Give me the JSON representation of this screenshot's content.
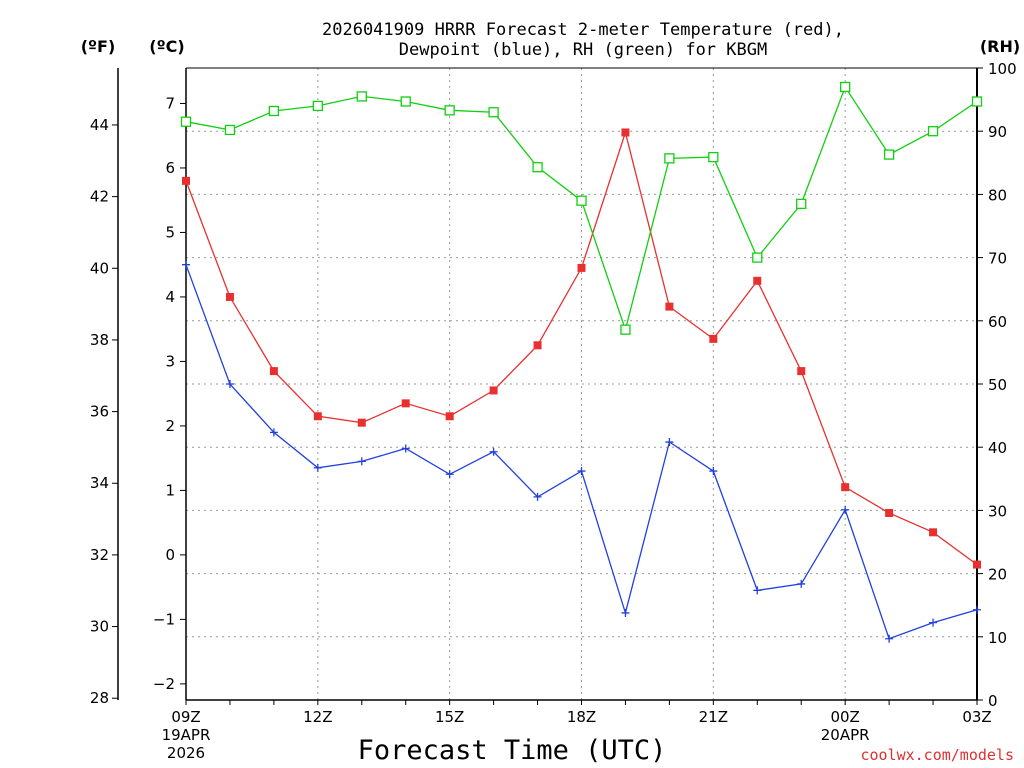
{
  "title": {
    "line1": "2026041909 HRRR Forecast 2-meter Temperature (red),",
    "line2": "Dewpoint (blue), RH (green) for KBGM"
  },
  "units": {
    "f": "(ºF)",
    "c": "(ºC)",
    "rh": "(RH)"
  },
  "credit": "coolwx.com/models",
  "colors": {
    "temperature": "#e83030",
    "dewpoint": "#2040e0",
    "rh": "#10d010",
    "grid": "#999999"
  },
  "chart_data": {
    "type": "line",
    "title": "2026041909 HRRR Forecast 2-meter Temperature (red), Dewpoint (blue), RH (green) for KBGM",
    "xlabel": "Forecast Time (UTC)",
    "x_hours": [
      9,
      10,
      11,
      12,
      13,
      14,
      15,
      16,
      17,
      18,
      19,
      20,
      21,
      22,
      23,
      24,
      25,
      26,
      27
    ],
    "xlim": [
      9,
      27
    ],
    "x_ticks": [
      {
        "hour": 9,
        "label": "09Z",
        "date": "19APR",
        "year": "2026"
      },
      {
        "hour": 12,
        "label": "12Z"
      },
      {
        "hour": 15,
        "label": "15Z"
      },
      {
        "hour": 18,
        "label": "18Z"
      },
      {
        "hour": 21,
        "label": "21Z"
      },
      {
        "hour": 24,
        "label": "00Z",
        "date": "20APR"
      },
      {
        "hour": 27,
        "label": "03Z"
      }
    ],
    "y_celsius": {
      "ylim": [
        -2.25,
        7.55
      ],
      "ticks": [
        -2,
        -1,
        0,
        1,
        2,
        3,
        4,
        5,
        6,
        7
      ]
    },
    "y_fahrenheit": {
      "ticks": [
        28,
        30,
        32,
        34,
        36,
        38,
        40,
        42,
        44
      ]
    },
    "y_rh": {
      "ylim": [
        0,
        100
      ],
      "ticks": [
        0,
        10,
        20,
        30,
        40,
        50,
        60,
        70,
        80,
        90,
        100
      ]
    },
    "series": [
      {
        "name": "Temperature",
        "axis": "celsius",
        "color": "#e83030",
        "marker": "filled-square",
        "values": [
          5.8,
          4.0,
          2.85,
          2.15,
          2.05,
          2.35,
          2.15,
          2.55,
          3.25,
          4.45,
          6.55,
          3.85,
          3.35,
          4.25,
          2.85,
          1.05,
          0.65,
          0.35,
          -0.15
        ]
      },
      {
        "name": "Dewpoint",
        "axis": "celsius",
        "color": "#2040e0",
        "marker": "plus",
        "values": [
          4.5,
          2.65,
          1.9,
          1.35,
          1.45,
          1.65,
          1.25,
          1.6,
          0.9,
          1.3,
          -0.9,
          1.75,
          1.3,
          -0.55,
          -0.45,
          0.7,
          -1.3,
          -1.05,
          -0.85
        ]
      },
      {
        "name": "RH",
        "axis": "rh",
        "color": "#10d010",
        "marker": "open-square",
        "values": [
          91.5,
          90.2,
          93.2,
          94.0,
          95.5,
          94.7,
          93.3,
          93.0,
          84.3,
          79.0,
          58.6,
          85.7,
          85.9,
          70.0,
          78.5,
          97.0,
          86.3,
          90.0,
          94.7
        ]
      }
    ],
    "grid": true
  }
}
